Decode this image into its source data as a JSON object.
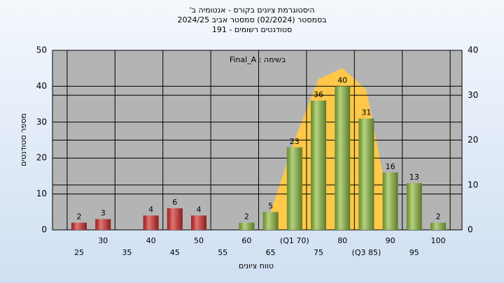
{
  "chart_data": {
    "type": "bar",
    "title": [
      "היסטוגרמת ציונים בקורס - אנטומיה ב'",
      "בסמסטר  (02/2024)  סמסטר אביב 2024/25",
      "סטודנטים רשומים - 191"
    ],
    "annotation": "בשימה : Final_A",
    "x_label": "טווח ציונים",
    "y_label": "מספר סטודנטים",
    "categories": [
      "25",
      "30",
      "35",
      "40",
      "45",
      "50",
      "55",
      "60",
      "65",
      "(Q1 70)",
      "75",
      "80",
      "(Q3 85)",
      "90",
      "95",
      "100"
    ],
    "values": [
      2,
      3,
      null,
      4,
      6,
      4,
      null,
      2,
      5,
      23,
      36,
      40,
      31,
      16,
      13,
      2
    ],
    "colors": [
      "#d42a2a",
      "#d42a2a",
      "#d42a2a",
      "#d42a2a",
      "#d42a2a",
      "#d42a2a",
      "#d42a2a",
      "#8dbb3c",
      "#8dbb3c",
      "#8dbb3c",
      "#8dbb3c",
      "#8dbb3c",
      "#8dbb3c",
      "#8dbb3c",
      "#8dbb3c",
      "#8dbb3c"
    ],
    "curve": {
      "color": "#ffc84a",
      "values": [
        null,
        null,
        null,
        null,
        null,
        null,
        null,
        null,
        5,
        25,
        42,
        45,
        39,
        5,
        null,
        null
      ]
    },
    "ylim": [
      0,
      50
    ],
    "yticks": [
      0,
      10,
      20,
      30,
      40,
      50
    ],
    "y2lim": [
      0,
      40
    ],
    "y2ticks": [
      0,
      10,
      20,
      30,
      40
    ],
    "grid": true
  }
}
